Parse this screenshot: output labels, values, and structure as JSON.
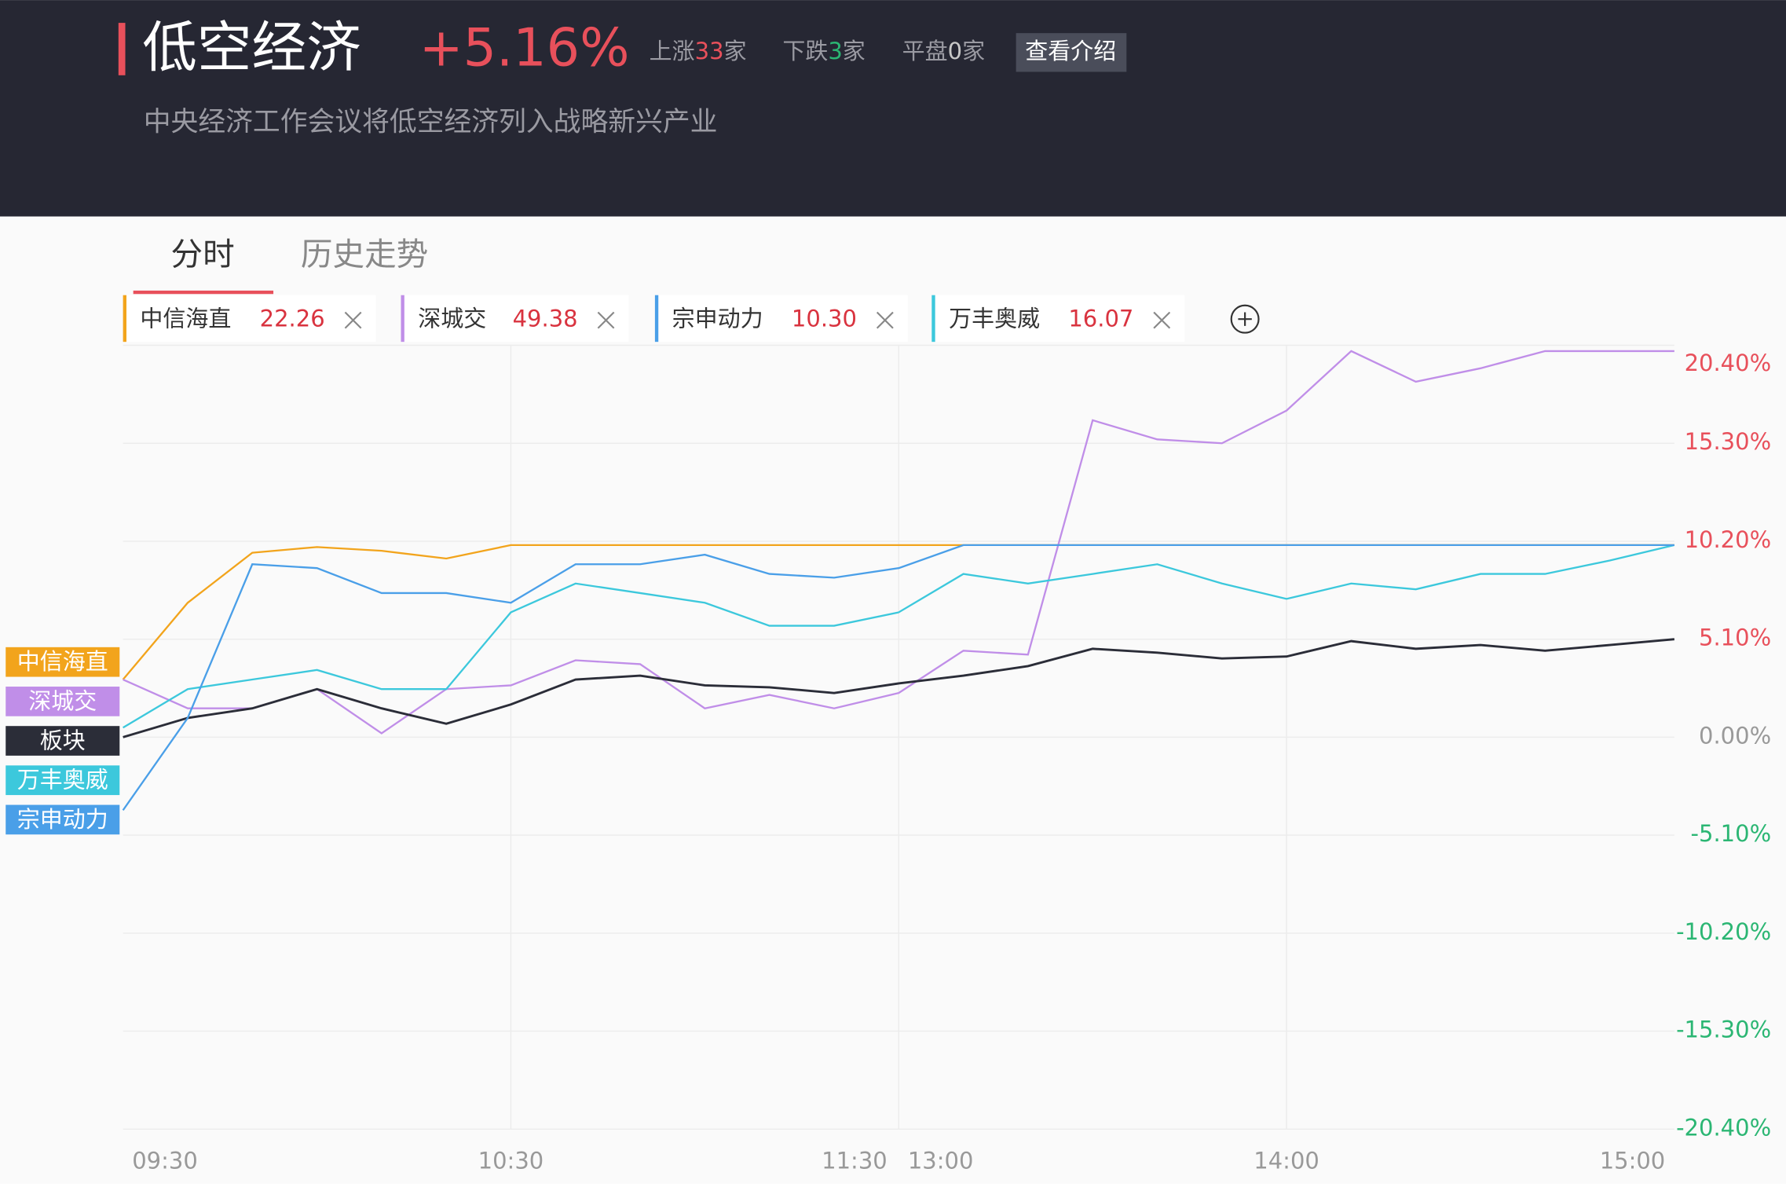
{
  "header": {
    "title": "低空经济",
    "change": "+5.16%",
    "stats": [
      {
        "label": "上涨",
        "count": "33",
        "unit": "家"
      },
      {
        "label": "下跌",
        "count": "3",
        "unit": "家"
      },
      {
        "label": "平盘",
        "count": "0",
        "unit": "家"
      }
    ],
    "button": "查看介绍",
    "subtitle": "中央经济工作会议将低空经济列入战略新兴产业"
  },
  "tabs": [
    "分时",
    "历史走势"
  ],
  "stocks": [
    {
      "name": "中信海直",
      "price": "22.26"
    },
    {
      "name": "深城交",
      "price": "49.38"
    },
    {
      "name": "宗申动力",
      "price": "10.30"
    },
    {
      "name": "万丰奥威",
      "price": "16.07"
    }
  ],
  "chart_data": {
    "type": "line",
    "x": [
      "09:30",
      "09:40",
      "09:50",
      "10:00",
      "10:10",
      "10:20",
      "10:30",
      "10:40",
      "10:50",
      "11:00",
      "11:10",
      "11:20",
      "11:30",
      "13:10",
      "13:20",
      "13:30",
      "13:40",
      "13:50",
      "14:00",
      "14:10",
      "14:20",
      "14:30",
      "14:40",
      "14:50",
      "15:00"
    ],
    "xticks": [
      "09:30",
      "10:30",
      "11:30",
      "13:00",
      "14:00",
      "15:00"
    ],
    "ylim": [
      -20.4,
      20.4
    ],
    "yticks": [
      {
        "value": 20.4,
        "label": "20.40%"
      },
      {
        "value": 15.3,
        "label": "15.30%"
      },
      {
        "value": 10.2,
        "label": "10.20%"
      },
      {
        "value": 5.1,
        "label": "5.10%"
      },
      {
        "value": 0,
        "label": "0.00%"
      },
      {
        "value": -5.1,
        "label": "-5.10%"
      },
      {
        "value": -10.2,
        "label": "-10.20%"
      },
      {
        "value": -15.3,
        "label": "-15.30%"
      },
      {
        "value": -20.4,
        "label": "-20.40%"
      }
    ],
    "grid": true,
    "series": [
      {
        "name": "中信海直",
        "color": "#f2a41c",
        "values": [
          3.0,
          7.0,
          9.6,
          9.9,
          9.7,
          9.3,
          10.0,
          10.0,
          10.0,
          10.0,
          10.0,
          10.0,
          10.0,
          10.0,
          10.0,
          10.0,
          10.0,
          10.0,
          10.0,
          10.0,
          10.0,
          10.0,
          10.0,
          10.0,
          10.0
        ]
      },
      {
        "name": "深城交",
        "color": "#c08ee8",
        "values": [
          3.0,
          1.5,
          1.5,
          2.5,
          0.2,
          2.5,
          2.7,
          4.0,
          3.8,
          1.5,
          2.2,
          1.5,
          2.3,
          4.5,
          4.3,
          16.5,
          15.5,
          15.3,
          17.0,
          20.1,
          18.5,
          19.2,
          20.1,
          20.1,
          20.1
        ]
      },
      {
        "name": "板块",
        "color": "#2b2d38",
        "values": [
          0,
          1.0,
          1.5,
          2.5,
          1.5,
          0.7,
          1.7,
          3.0,
          3.2,
          2.7,
          2.6,
          2.3,
          2.8,
          3.2,
          3.7,
          4.6,
          4.4,
          4.1,
          4.2,
          5.0,
          4.6,
          4.8,
          4.5,
          4.8,
          5.1
        ]
      },
      {
        "name": "万丰奥威",
        "color": "#3cc8dc",
        "values": [
          0.5,
          2.5,
          3.0,
          3.5,
          2.5,
          2.5,
          6.5,
          8.0,
          7.5,
          7.0,
          5.8,
          5.8,
          6.5,
          8.5,
          8.0,
          8.5,
          9.0,
          8.0,
          7.2,
          8.0,
          7.7,
          8.5,
          8.5,
          9.2,
          10.0
        ]
      },
      {
        "name": "宗申动力",
        "color": "#4a9fe8",
        "values": [
          -3.8,
          1.0,
          9.0,
          8.8,
          7.5,
          7.5,
          7.0,
          9.0,
          9.0,
          9.5,
          8.5,
          8.3,
          8.8,
          10.0,
          10.0,
          10.0,
          10.0,
          10.0,
          10.0,
          10.0,
          10.0,
          10.0,
          10.0,
          10.0,
          10.0
        ]
      }
    ]
  }
}
